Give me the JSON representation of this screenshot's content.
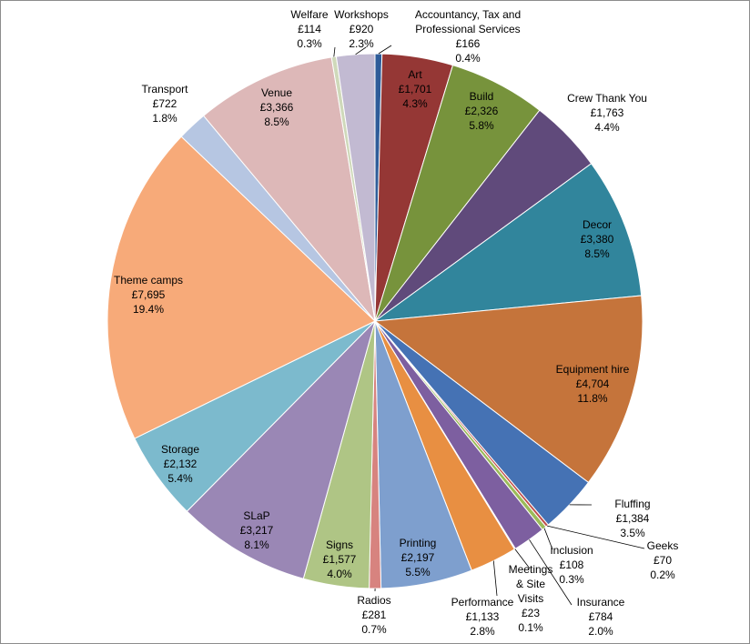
{
  "chart_data": {
    "type": "pie",
    "title": "",
    "start_angle_deg": 0,
    "direction": "clockwise",
    "slices": [
      {
        "name": "Accountancy, Tax and Professional Services",
        "lines": [
          "Accountancy, Tax and",
          "Professional Services"
        ],
        "value": 166,
        "value_label": "£166",
        "percent_label": "0.4%",
        "color": "#2e5c99"
      },
      {
        "name": "Art",
        "lines": [
          "Art"
        ],
        "value": 1701,
        "value_label": "£1,701",
        "percent_label": "4.3%",
        "color": "#953735"
      },
      {
        "name": "Build",
        "lines": [
          "Build"
        ],
        "value": 2326,
        "value_label": "£2,326",
        "percent_label": "5.8%",
        "color": "#77933c"
      },
      {
        "name": "Crew Thank You",
        "lines": [
          "Crew Thank You"
        ],
        "value": 1763,
        "value_label": "£1,763",
        "percent_label": "4.4%",
        "color": "#604a7b"
      },
      {
        "name": "Decor",
        "lines": [
          "Decor"
        ],
        "value": 3380,
        "value_label": "£3,380",
        "percent_label": "8.5%",
        "color": "#31859c"
      },
      {
        "name": "Equipment hire",
        "lines": [
          "Equipment hire"
        ],
        "value": 4704,
        "value_label": "£4,704",
        "percent_label": "11.8%",
        "color": "#c5743b"
      },
      {
        "name": "Fluffing",
        "lines": [
          "Fluffing"
        ],
        "value": 1384,
        "value_label": "£1,384",
        "percent_label": "3.5%",
        "color": "#4572b4"
      },
      {
        "name": "Geeks",
        "lines": [
          "Geeks"
        ],
        "value": 70,
        "value_label": "£70",
        "percent_label": "0.2%",
        "color": "#c0504d"
      },
      {
        "name": "Inclusion",
        "lines": [
          "Inclusion"
        ],
        "value": 108,
        "value_label": "£108",
        "percent_label": "0.3%",
        "color": "#9bbb59"
      },
      {
        "name": "Insurance",
        "lines": [
          "Insurance"
        ],
        "value": 784,
        "value_label": "£784",
        "percent_label": "2.0%",
        "color": "#7d5fa0"
      },
      {
        "name": "Meetings & Site Visits",
        "lines": [
          "Meetings",
          "& Site",
          "Visits"
        ],
        "value": 23,
        "value_label": "£23",
        "percent_label": "0.1%",
        "color": "#4aacc6"
      },
      {
        "name": "Performance",
        "lines": [
          "Performance"
        ],
        "value": 1133,
        "value_label": "£1,133",
        "percent_label": "2.8%",
        "color": "#e88f42"
      },
      {
        "name": "Printing",
        "lines": [
          "Printing"
        ],
        "value": 2197,
        "value_label": "£2,197",
        "percent_label": "5.5%",
        "color": "#7e9fce"
      },
      {
        "name": "Radios",
        "lines": [
          "Radios"
        ],
        "value": 281,
        "value_label": "£281",
        "percent_label": "0.7%",
        "color": "#d7837f"
      },
      {
        "name": "Signs",
        "lines": [
          "Signs"
        ],
        "value": 1577,
        "value_label": "£1,577",
        "percent_label": "4.0%",
        "color": "#afc585"
      },
      {
        "name": "SLaP",
        "lines": [
          "SLaP"
        ],
        "value": 3217,
        "value_label": "£3,217",
        "percent_label": "8.1%",
        "color": "#9a87b5"
      },
      {
        "name": "Storage",
        "lines": [
          "Storage"
        ],
        "value": 2132,
        "value_label": "£2,132",
        "percent_label": "5.4%",
        "color": "#7cbacd"
      },
      {
        "name": "Theme camps",
        "lines": [
          "Theme camps"
        ],
        "value": 7695,
        "value_label": "£7,695",
        "percent_label": "19.4%",
        "color": "#f7aa79"
      },
      {
        "name": "Transport",
        "lines": [
          "Transport"
        ],
        "value": 722,
        "value_label": "£722",
        "percent_label": "1.8%",
        "color": "#b6c6e2"
      },
      {
        "name": "Venue",
        "lines": [
          "Venue"
        ],
        "value": 3366,
        "value_label": "£3,366",
        "percent_label": "8.5%",
        "color": "#ddb8b8"
      },
      {
        "name": "Welfare",
        "lines": [
          "Welfare"
        ],
        "value": 114,
        "value_label": "£114",
        "percent_label": "0.3%",
        "color": "#cfd9ba"
      },
      {
        "name": "Workshops",
        "lines": [
          "Workshops"
        ],
        "value": 920,
        "value_label": "£920",
        "percent_label": "2.3%",
        "color": "#c2bad2"
      }
    ]
  }
}
